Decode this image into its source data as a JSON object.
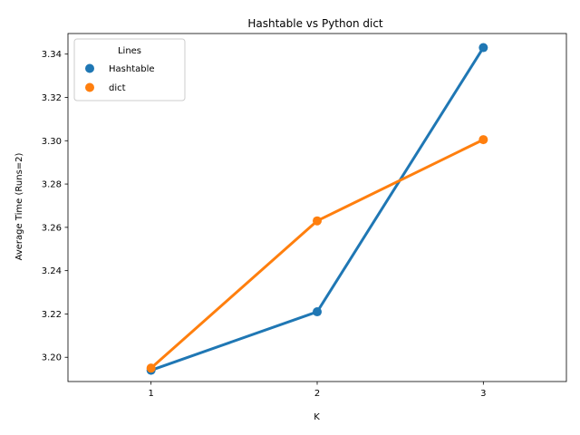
{
  "chart_data": {
    "type": "line",
    "title": "Hashtable vs Python dict",
    "xlabel": "K",
    "ylabel": "Average Time (Runs=2)",
    "categories": [
      "1",
      "2",
      "3"
    ],
    "ylim": [
      3.1888,
      3.3495
    ],
    "yticks": [
      3.2,
      3.22,
      3.24,
      3.26,
      3.28,
      3.3,
      3.32,
      3.34
    ],
    "ytick_labels": [
      "3.20",
      "3.22",
      "3.24",
      "3.26",
      "3.28",
      "3.30",
      "3.32",
      "3.34"
    ],
    "grid": false,
    "legend": {
      "title": "Lines",
      "placement": "top-left"
    },
    "series": [
      {
        "name": "Hashtable",
        "color": "#1f77b4",
        "values": [
          3.194,
          3.221,
          3.343
        ]
      },
      {
        "name": "dict",
        "color": "#ff7f0e",
        "values": [
          3.195,
          3.263,
          3.3005
        ]
      }
    ]
  }
}
